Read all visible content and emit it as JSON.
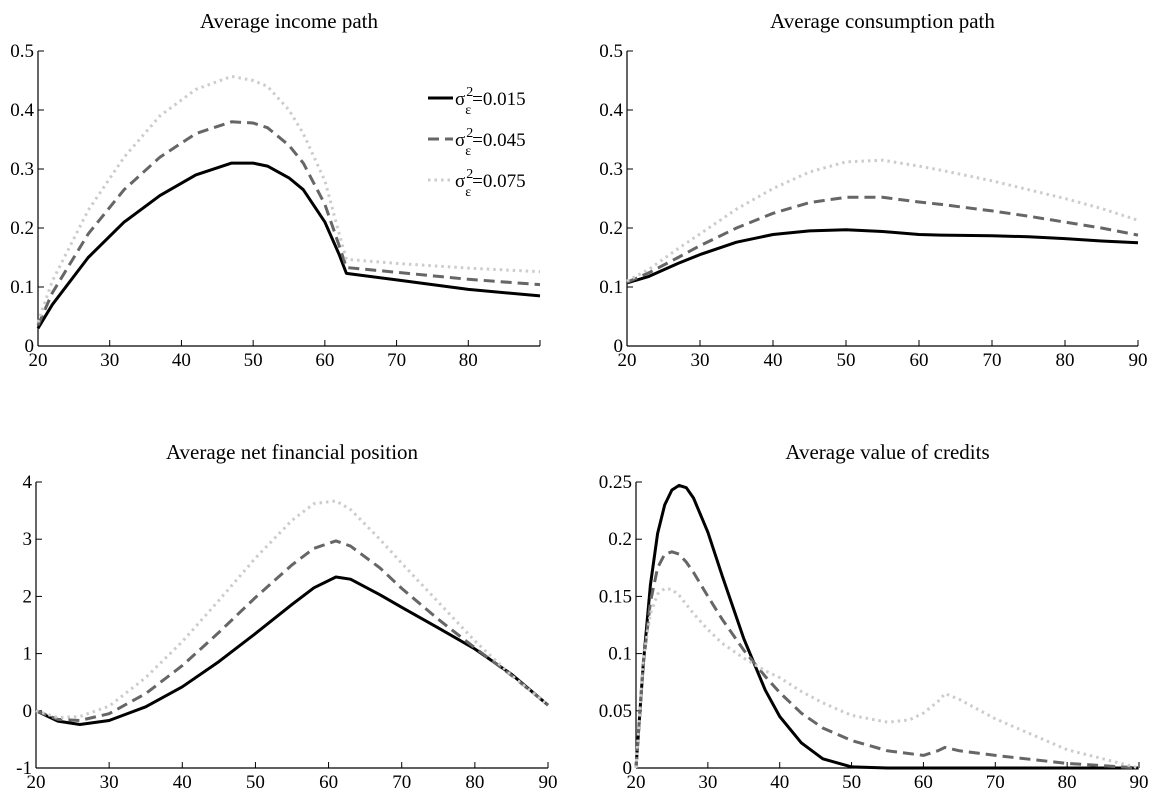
{
  "chart_data": [
    {
      "type": "line",
      "title": "Average income path",
      "xlim": [
        20,
        90
      ],
      "ylim": [
        0,
        0.5
      ],
      "xticks": [
        "20",
        "30",
        "40",
        "50",
        "60",
        "70",
        "80",
        ""
      ],
      "yticks": [
        "0",
        "0.1",
        "0.2",
        "0.3",
        "0.4",
        "0.5"
      ],
      "legend": {
        "placement": "top-right",
        "entries": [
          {
            "base": "σ",
            "sup": "2",
            "sub": "ε",
            "rest": "=0.015"
          },
          {
            "base": "σ",
            "sup": "2",
            "sub": "ε",
            "rest": "=0.045"
          },
          {
            "base": "σ",
            "sup": "2",
            "sub": "ε",
            "rest": "=0.075"
          }
        ]
      },
      "series": [
        {
          "color": "#000000",
          "dash": "solid",
          "x": [
            20,
            22,
            27,
            32,
            37,
            42,
            47,
            50,
            52,
            55,
            57,
            60,
            62,
            63,
            70,
            80,
            90
          ],
          "y": [
            0.03,
            0.07,
            0.15,
            0.21,
            0.255,
            0.29,
            0.31,
            0.31,
            0.305,
            0.285,
            0.265,
            0.21,
            0.155,
            0.123,
            0.112,
            0.096,
            0.085
          ]
        },
        {
          "color": "#666666",
          "dash": "dashed",
          "x": [
            20,
            22,
            27,
            32,
            37,
            42,
            47,
            50,
            52,
            55,
            57,
            60,
            62,
            63,
            70,
            80,
            90
          ],
          "y": [
            0.035,
            0.09,
            0.19,
            0.265,
            0.32,
            0.36,
            0.38,
            0.378,
            0.37,
            0.34,
            0.31,
            0.24,
            0.17,
            0.133,
            0.125,
            0.113,
            0.104
          ]
        },
        {
          "color": "#cccccc",
          "dash": "dotted",
          "x": [
            20,
            22,
            27,
            32,
            37,
            42,
            47,
            50,
            52,
            55,
            57,
            60,
            62,
            63,
            70,
            80,
            90
          ],
          "y": [
            0.04,
            0.11,
            0.23,
            0.32,
            0.39,
            0.435,
            0.457,
            0.45,
            0.44,
            0.4,
            0.36,
            0.28,
            0.19,
            0.147,
            0.14,
            0.132,
            0.126
          ]
        }
      ]
    },
    {
      "type": "line",
      "title": "Average consumption path",
      "xlim": [
        20,
        90
      ],
      "ylim": [
        0,
        0.5
      ],
      "xticks": [
        "20",
        "30",
        "40",
        "50",
        "60",
        "70",
        "80",
        "90"
      ],
      "yticks": [
        "0",
        "0.1",
        "0.2",
        "0.3",
        "0.4",
        "0.5"
      ],
      "series": [
        {
          "color": "#000000",
          "dash": "solid",
          "x": [
            20,
            23,
            27,
            30,
            35,
            40,
            45,
            50,
            55,
            60,
            63,
            70,
            75,
            80,
            85,
            90
          ],
          "y": [
            0.107,
            0.118,
            0.14,
            0.155,
            0.176,
            0.189,
            0.195,
            0.197,
            0.194,
            0.189,
            0.188,
            0.187,
            0.185,
            0.182,
            0.178,
            0.175
          ]
        },
        {
          "color": "#666666",
          "dash": "dashed",
          "x": [
            20,
            23,
            27,
            30,
            35,
            40,
            45,
            50,
            55,
            60,
            63,
            70,
            75,
            80,
            85,
            90
          ],
          "y": [
            0.108,
            0.124,
            0.15,
            0.17,
            0.2,
            0.225,
            0.243,
            0.252,
            0.252,
            0.244,
            0.24,
            0.229,
            0.22,
            0.21,
            0.2,
            0.188
          ]
        },
        {
          "color": "#cccccc",
          "dash": "dotted",
          "x": [
            20,
            23,
            27,
            30,
            35,
            40,
            45,
            50,
            55,
            60,
            63,
            70,
            75,
            80,
            85,
            90
          ],
          "y": [
            0.11,
            0.13,
            0.165,
            0.19,
            0.232,
            0.267,
            0.295,
            0.312,
            0.315,
            0.305,
            0.298,
            0.28,
            0.265,
            0.25,
            0.233,
            0.213
          ]
        }
      ]
    },
    {
      "type": "line",
      "title": "Average net financial position",
      "xlim": [
        20,
        90
      ],
      "ylim": [
        -1,
        4
      ],
      "xticks": [
        "20",
        "30",
        "40",
        "50",
        "60",
        "70",
        "80",
        "90"
      ],
      "yticks": [
        "-1",
        "0",
        "1",
        "2",
        "3",
        "4"
      ],
      "series": [
        {
          "color": "#000000",
          "dash": "solid",
          "x": [
            20,
            23,
            26,
            30,
            35,
            40,
            45,
            50,
            55,
            58,
            61,
            63,
            67,
            70,
            75,
            80,
            85,
            90
          ],
          "y": [
            0.0,
            -0.18,
            -0.24,
            -0.17,
            0.07,
            0.42,
            0.86,
            1.35,
            1.86,
            2.15,
            2.34,
            2.3,
            2.03,
            1.81,
            1.45,
            1.08,
            0.64,
            0.1
          ]
        },
        {
          "color": "#666666",
          "dash": "dashed",
          "x": [
            20,
            23,
            26,
            30,
            35,
            40,
            45,
            50,
            55,
            58,
            61,
            63,
            67,
            70,
            75,
            80,
            85,
            90
          ],
          "y": [
            0.0,
            -0.15,
            -0.17,
            -0.05,
            0.3,
            0.79,
            1.37,
            1.98,
            2.55,
            2.84,
            2.97,
            2.88,
            2.5,
            2.14,
            1.6,
            1.1,
            0.62,
            0.1
          ]
        },
        {
          "color": "#cccccc",
          "dash": "dotted",
          "x": [
            20,
            23,
            26,
            30,
            35,
            40,
            45,
            50,
            55,
            58,
            61,
            63,
            67,
            70,
            75,
            80,
            85,
            90
          ],
          "y": [
            0.0,
            -0.12,
            -0.1,
            0.08,
            0.58,
            1.21,
            1.93,
            2.67,
            3.33,
            3.62,
            3.67,
            3.52,
            3.0,
            2.58,
            1.9,
            1.22,
            0.62,
            0.1
          ]
        }
      ]
    },
    {
      "type": "line",
      "title": "Average value of credits",
      "xlim": [
        20,
        90
      ],
      "ylim": [
        0,
        0.25
      ],
      "xticks": [
        "20",
        "30",
        "40",
        "50",
        "60",
        "70",
        "80",
        "90"
      ],
      "yticks": [
        "0",
        "0.05",
        "0.1",
        "0.15",
        "0.2",
        "0.25"
      ],
      "series": [
        {
          "color": "#000000",
          "dash": "solid",
          "x": [
            20,
            21,
            22,
            23,
            24,
            25,
            26,
            27,
            28,
            30,
            32,
            35,
            38,
            40,
            43,
            46,
            50,
            55,
            60,
            70,
            80,
            90
          ],
          "y": [
            0.0,
            0.09,
            0.16,
            0.205,
            0.23,
            0.243,
            0.247,
            0.245,
            0.236,
            0.206,
            0.168,
            0.113,
            0.068,
            0.045,
            0.022,
            0.008,
            0.001,
            0.0,
            0.0,
            0.0,
            0.0,
            0.0
          ]
        },
        {
          "color": "#666666",
          "dash": "dashed",
          "x": [
            20,
            21,
            22,
            23,
            24,
            25,
            26,
            27,
            28,
            30,
            32,
            35,
            38,
            40,
            43,
            46,
            50,
            55,
            60,
            62,
            63,
            65,
            70,
            80,
            90
          ],
          "y": [
            0.0,
            0.09,
            0.145,
            0.175,
            0.187,
            0.189,
            0.187,
            0.18,
            0.171,
            0.15,
            0.13,
            0.103,
            0.08,
            0.066,
            0.048,
            0.035,
            0.024,
            0.015,
            0.011,
            0.015,
            0.018,
            0.015,
            0.011,
            0.004,
            0.0
          ]
        },
        {
          "color": "#cccccc",
          "dash": "dotted",
          "x": [
            20,
            21,
            22,
            23,
            24,
            25,
            26,
            27,
            28,
            30,
            32,
            35,
            38,
            40,
            43,
            46,
            50,
            55,
            58,
            60,
            62,
            63,
            65,
            70,
            80,
            90
          ],
          "y": [
            0.0,
            0.095,
            0.135,
            0.152,
            0.157,
            0.156,
            0.151,
            0.143,
            0.135,
            0.121,
            0.109,
            0.096,
            0.085,
            0.079,
            0.067,
            0.057,
            0.046,
            0.04,
            0.042,
            0.048,
            0.058,
            0.065,
            0.06,
            0.043,
            0.016,
            0.0
          ]
        }
      ]
    }
  ]
}
